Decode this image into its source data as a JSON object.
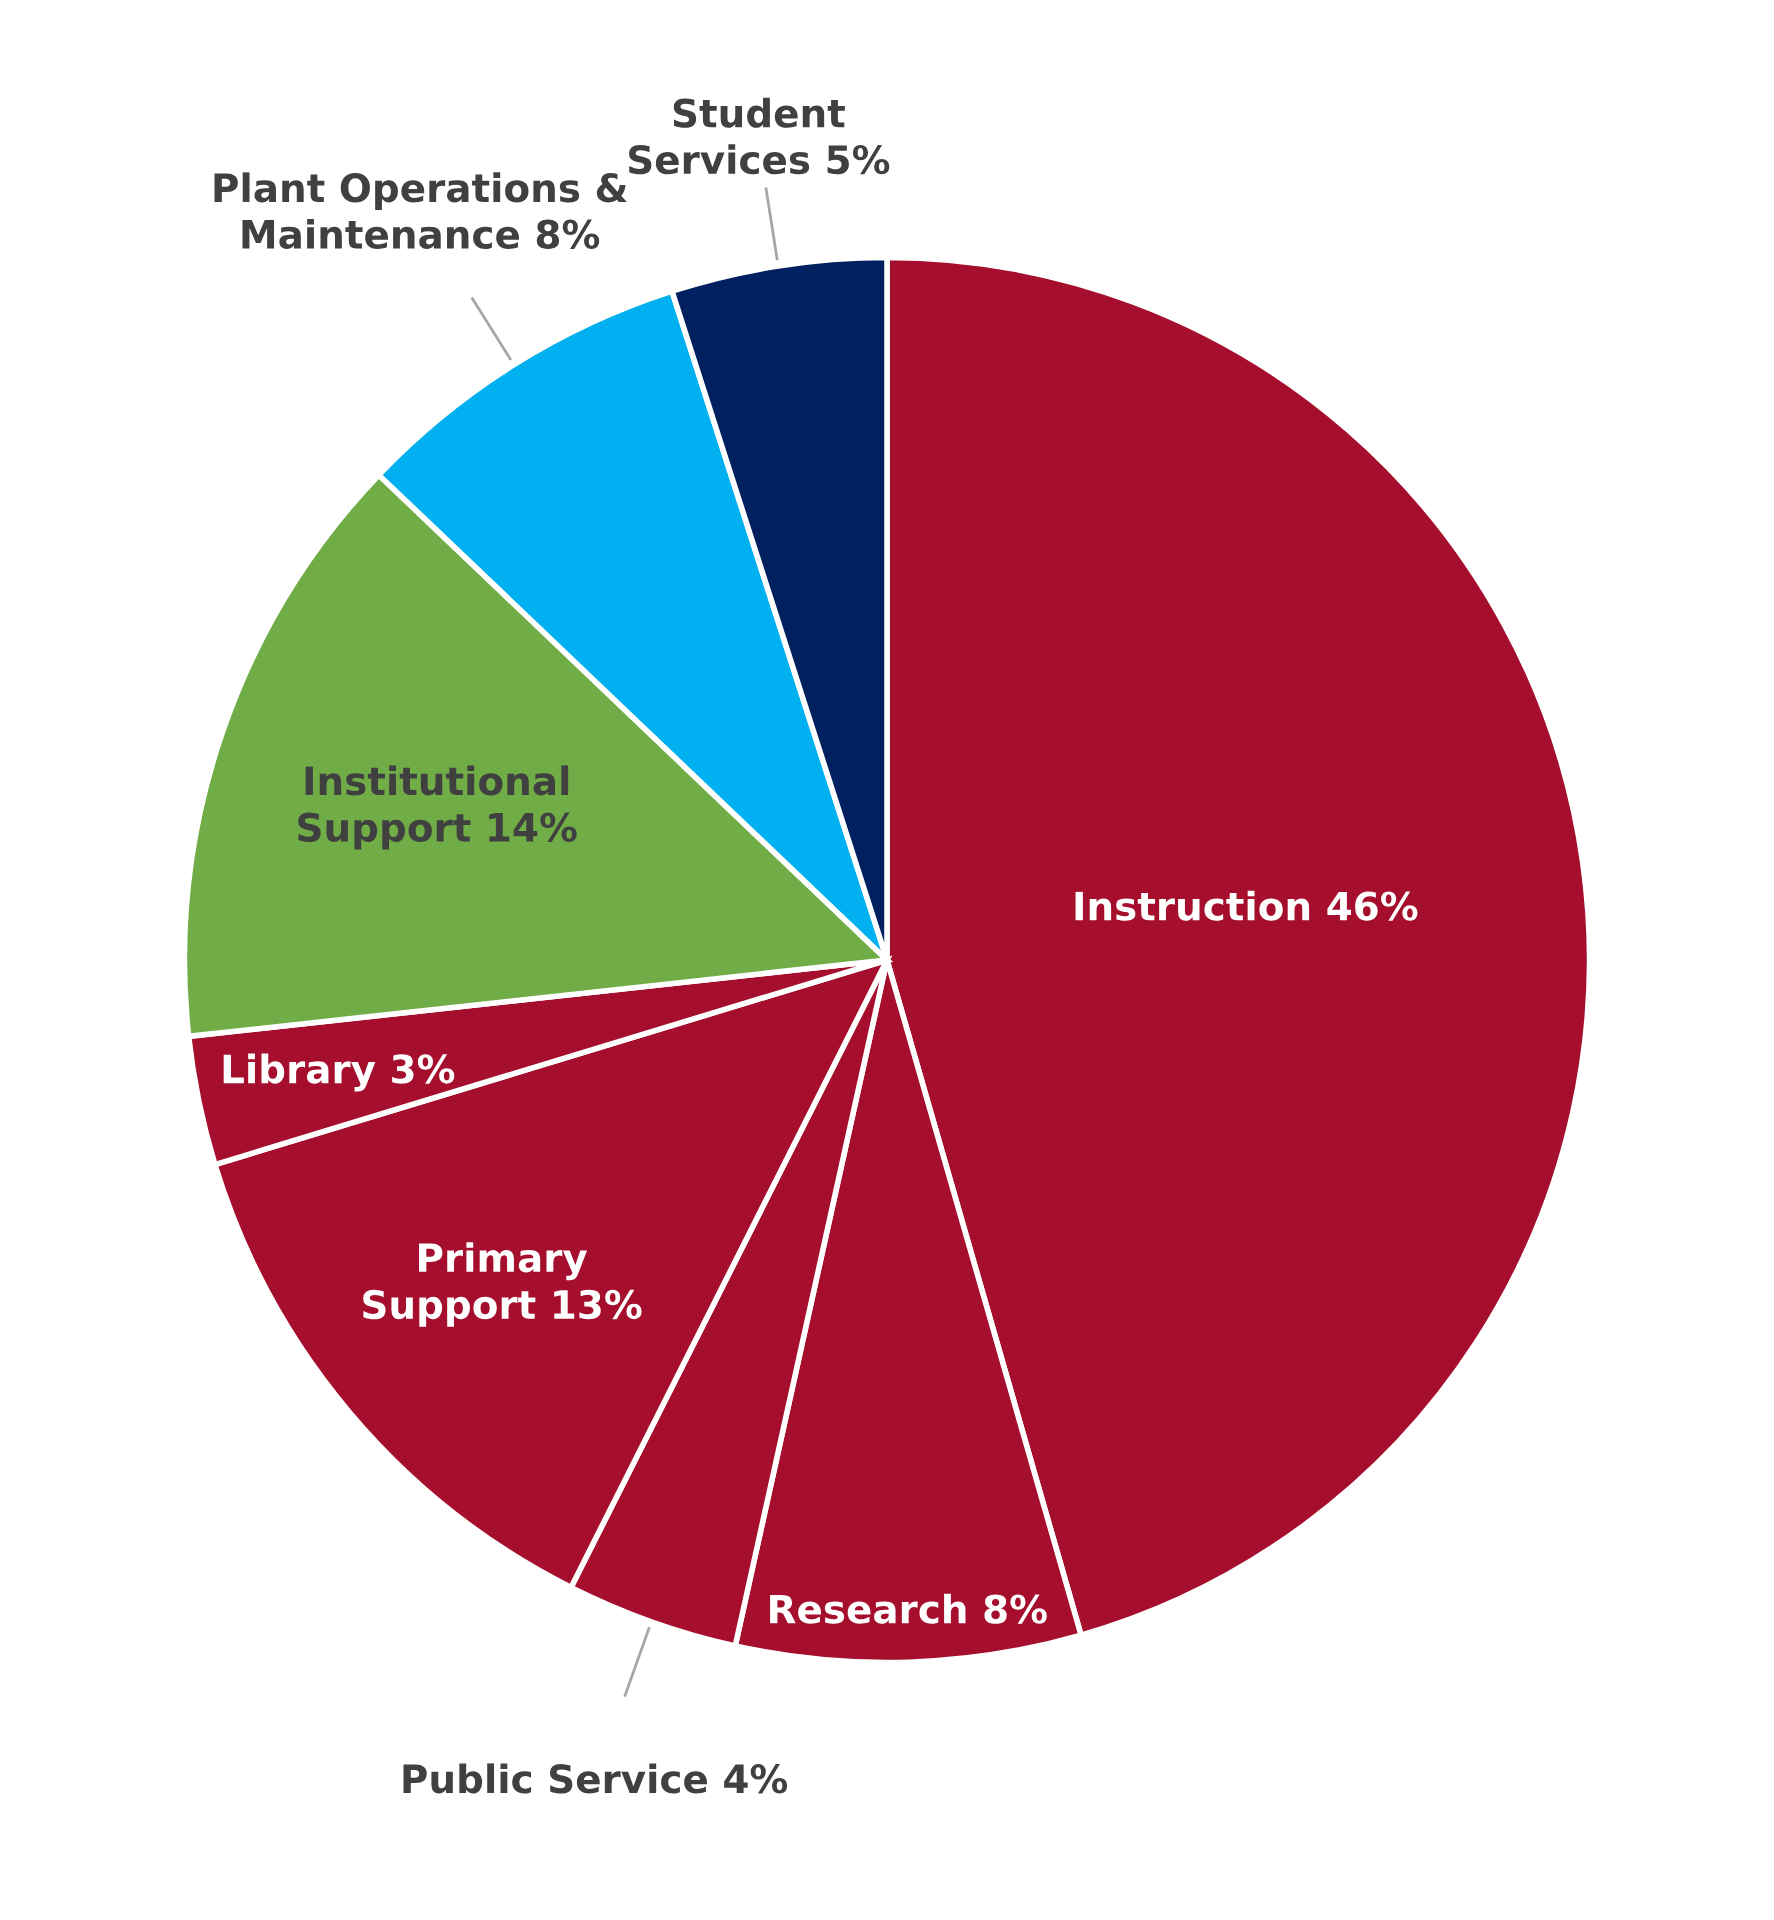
{
  "chart_data": {
    "type": "pie",
    "categories": [
      "Instruction",
      "Research",
      "Public Service",
      "Primary\nSupport",
      "Library",
      "Institutional\nSupport",
      "Plant Operations &\nMaintenance",
      "Student\nServices"
    ],
    "values": [
      46,
      8,
      4,
      13,
      3,
      14,
      8,
      5
    ],
    "value_labels": [
      "46%",
      "8%",
      "4%",
      "13%",
      "3%",
      "14%",
      "8%",
      "5%"
    ],
    "colors": [
      "#a50f2d",
      "#a50f2d",
      "#a50f2d",
      "#a50f2d",
      "#a50f2d",
      "#70ad47",
      "#00b0f0",
      "#002060"
    ]
  }
}
